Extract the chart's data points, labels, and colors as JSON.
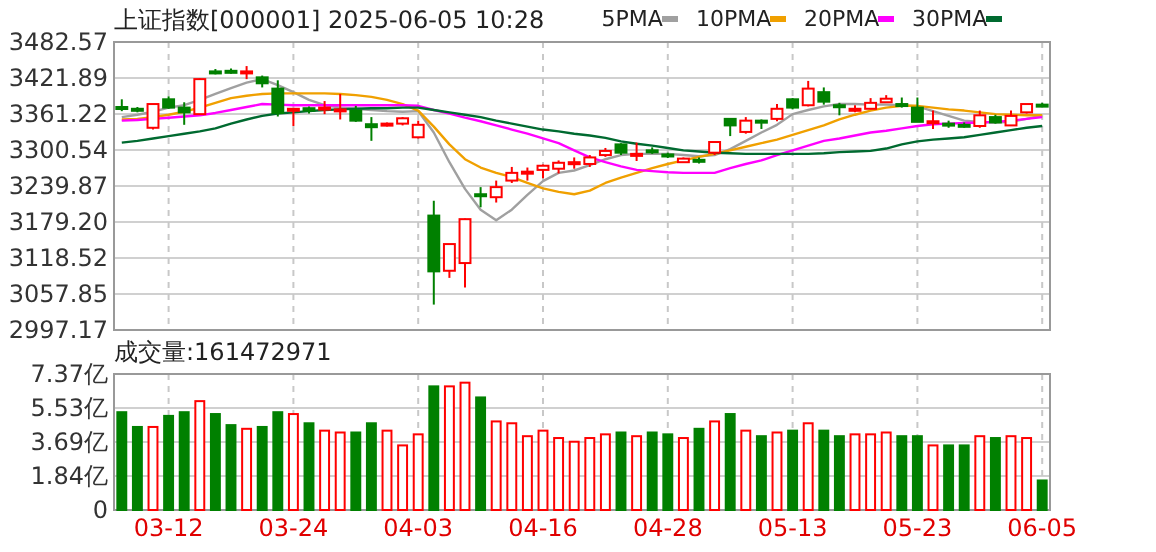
{
  "chart_data": [
    {
      "type": "candlestick",
      "title": "上证指数[000001]  2025-06-05  10:28",
      "legend": "top right",
      "grid": true,
      "tick_labels": "y",
      "categories": [
        null,
        null,
        null,
        null,
        null,
        null,
        null,
        null,
        null,
        null,
        null,
        null,
        null,
        null,
        null,
        null,
        null,
        null,
        null,
        null,
        null,
        null,
        null,
        null,
        null,
        null,
        null,
        null,
        null,
        null,
        null,
        null,
        null,
        null,
        null,
        null,
        null,
        null,
        null,
        null,
        null,
        null,
        null,
        null,
        null,
        null,
        null,
        null,
        null,
        null,
        null,
        null,
        null,
        null,
        null,
        null,
        null,
        null,
        null,
        null
      ],
      "ylim": [
        2997.17,
        3482.57
      ],
      "yticks": [
        2997.17,
        3057.85,
        3118.52,
        {
          "value": 3179.2,
          "label": "3179.20"
        },
        3239.87,
        3300.54,
        3361.22,
        3421.89,
        3482.57
      ],
      "ohlc": [
        [
          3373,
          3386,
          3366,
          3371
        ],
        [
          3370,
          3373,
          3364,
          3368
        ],
        [
          3338,
          3378,
          3335,
          3378
        ],
        [
          3386,
          3391,
          3370,
          3372
        ],
        [
          3372,
          3381,
          3343,
          3364
        ],
        [
          3361,
          3421,
          3360,
          3420
        ],
        [
          3433,
          3437,
          3428,
          3432
        ],
        [
          3434,
          3438,
          3429,
          3433
        ],
        [
          3432,
          3442,
          3420,
          3433
        ],
        [
          3423,
          3426,
          3406,
          3413
        ],
        [
          3404,
          3418,
          3357,
          3363
        ],
        [
          3368,
          3371,
          3341,
          3370
        ],
        [
          3371,
          3374,
          3362,
          3367
        ],
        [
          3369,
          3383,
          3361,
          3372
        ],
        [
          3368,
          3395,
          3352,
          3369
        ],
        [
          3367,
          3375,
          3348,
          3350
        ],
        [
          3344,
          3356,
          3316,
          3339
        ],
        [
          3342,
          3347,
          3340,
          3345
        ],
        [
          3345,
          3356,
          3342,
          3354
        ],
        [
          3322,
          3350,
          3320,
          3343
        ],
        [
          3190,
          3215,
          3040,
          3096
        ],
        [
          3097,
          3142,
          3085,
          3142
        ],
        [
          3110,
          3185,
          3069,
          3184
        ],
        [
          3226,
          3238,
          3204,
          3225
        ],
        [
          3221,
          3249,
          3212,
          3238
        ],
        [
          3249,
          3272,
          3245,
          3262
        ],
        [
          3261,
          3271,
          3249,
          3264
        ],
        [
          3267,
          3276,
          3253,
          3274
        ],
        [
          3269,
          3283,
          3261,
          3279
        ],
        [
          3278,
          3288,
          3269,
          3280
        ],
        [
          3277,
          3292,
          3272,
          3288
        ],
        [
          3292,
          3304,
          3289,
          3299
        ],
        [
          3310,
          3312,
          3292,
          3296
        ],
        [
          3293,
          3313,
          3282,
          3294
        ],
        [
          3300,
          3305,
          3294,
          3299
        ],
        [
          3293,
          3296,
          3287,
          3291
        ],
        [
          3280,
          3288,
          3279,
          3286
        ],
        [
          3284,
          3288,
          3278,
          3283
        ],
        [
          3296,
          3314,
          3292,
          3314
        ],
        [
          3353,
          3354,
          3324,
          3342
        ],
        [
          3331,
          3356,
          3328,
          3350
        ],
        [
          3350,
          3352,
          3336,
          3348
        ],
        [
          3353,
          3378,
          3349,
          3370
        ],
        [
          3386,
          3388,
          3369,
          3372
        ],
        [
          3376,
          3417,
          3374,
          3404
        ],
        [
          3398,
          3406,
          3377,
          3382
        ],
        [
          3376,
          3380,
          3359,
          3374
        ],
        [
          3368,
          3376,
          3364,
          3370
        ],
        [
          3370,
          3388,
          3369,
          3380
        ],
        [
          3381,
          3393,
          3380,
          3387
        ],
        [
          3378,
          3389,
          3372,
          3375
        ],
        [
          3372,
          3389,
          3348,
          3348
        ],
        [
          3347,
          3367,
          3336,
          3349
        ],
        [
          3345,
          3350,
          3338,
          3344
        ],
        [
          3343,
          3347,
          3338,
          3342
        ],
        [
          3341,
          3367,
          3338,
          3359
        ],
        [
          3356,
          3360,
          3345,
          3347
        ],
        [
          3342,
          3367,
          3342,
          3358
        ],
        [
          3364,
          3378,
          3362,
          3378
        ],
        [
          3377,
          3380,
          3374,
          3376
        ]
      ],
      "colors": [
        "#008000",
        "#008000",
        "#ff0000",
        "#008000",
        "#008000",
        "#ff0000",
        "#008000",
        "#008000",
        "#ff0000",
        "#008000",
        "#008000",
        "#ff0000",
        "#008000",
        "#ff0000",
        "#ff0000",
        "#008000",
        "#008000",
        "#ff0000",
        "#ff0000",
        "#ff0000",
        "#008000",
        "#ff0000",
        "#ff0000",
        "#008000",
        "#ff0000",
        "#ff0000",
        "#ff0000",
        "#ff0000",
        "#ff0000",
        "#ff0000",
        "#ff0000",
        "#ff0000",
        "#008000",
        "#ff0000",
        "#008000",
        "#008000",
        "#ff0000",
        "#008000",
        "#ff0000",
        "#008000",
        "#ff0000",
        "#008000",
        "#ff0000",
        "#008000",
        "#ff0000",
        "#008000",
        "#008000",
        "#ff0000",
        "#ff0000",
        "#ff0000",
        "#008000",
        "#008000",
        "#ff0000",
        "#008000",
        "#008000",
        "#ff0000",
        "#008000",
        "#ff0000",
        "#ff0000",
        "#008000"
      ],
      "series": [
        {
          "type": "line",
          "name": "5PMA",
          "color": "#a0a0a0",
          "values": [
            3356,
            3360,
            3365,
            3372,
            3376,
            3385,
            3395,
            3405,
            3414,
            3420,
            3410,
            3398,
            3385,
            3376,
            3372,
            3370,
            3368,
            3366,
            3365,
            3366,
            3330,
            3280,
            3235,
            3200,
            3182,
            3200,
            3225,
            3248,
            3262,
            3266,
            3275,
            3285,
            3292,
            3294,
            3294,
            3294,
            3292,
            3290,
            3292,
            3302,
            3316,
            3330,
            3343,
            3361,
            3368,
            3374,
            3378,
            3378,
            3377,
            3377,
            3376,
            3374,
            3366,
            3358,
            3350,
            3348,
            3347,
            3348,
            3353,
            3359
          ]
        },
        {
          "type": "line",
          "name": "10PMA",
          "color": "#f0a000",
          "values": [
            3352,
            3353,
            3356,
            3360,
            3365,
            3372,
            3380,
            3388,
            3392,
            3395,
            3396,
            3396,
            3396,
            3396,
            3395,
            3393,
            3390,
            3385,
            3378,
            3367,
            3340,
            3310,
            3285,
            3271,
            3262,
            3255,
            3245,
            3236,
            3230,
            3226,
            3232,
            3245,
            3254,
            3262,
            3270,
            3277,
            3283,
            3289,
            3294,
            3300,
            3306,
            3312,
            3318,
            3326,
            3334,
            3342,
            3352,
            3360,
            3367,
            3372,
            3375,
            3375,
            3372,
            3369,
            3367,
            3364,
            3361,
            3360,
            3359,
            3359
          ]
        },
        {
          "type": "line",
          "name": "20PMA",
          "color": "#ff00ff",
          "values": [
            3350,
            3351,
            3353,
            3355,
            3357,
            3359,
            3363,
            3368,
            3373,
            3378,
            3377,
            3376,
            3376,
            3376,
            3376,
            3376,
            3376,
            3376,
            3376,
            3375,
            3368,
            3362,
            3355,
            3349,
            3342,
            3335,
            3328,
            3320,
            3312,
            3300,
            3288,
            3280,
            3273,
            3267,
            3265,
            3263,
            3262,
            3262,
            3262,
            3270,
            3277,
            3283,
            3292,
            3300,
            3308,
            3316,
            3320,
            3325,
            3330,
            3333,
            3337,
            3341,
            3344,
            3345,
            3346,
            3347,
            3348,
            3350,
            3353,
            3356
          ]
        },
        {
          "type": "line",
          "name": "30PMA",
          "color": "#006a30",
          "values": [
            3313,
            3316,
            3320,
            3324,
            3328,
            3332,
            3337,
            3345,
            3352,
            3358,
            3362,
            3364,
            3366,
            3368,
            3369,
            3370,
            3371,
            3371,
            3372,
            3372,
            3368,
            3364,
            3360,
            3356,
            3350,
            3345,
            3340,
            3335,
            3332,
            3328,
            3325,
            3321,
            3315,
            3311,
            3308,
            3304,
            3300,
            3298,
            3296,
            3295,
            3294,
            3294,
            3294,
            3294,
            3294,
            3295,
            3297,
            3298,
            3299,
            3303,
            3310,
            3315,
            3318,
            3320,
            3322,
            3326,
            3330,
            3334,
            3338,
            3341
          ]
        }
      ]
    },
    {
      "type": "bar",
      "title": "成交量:161472971",
      "grid": true,
      "categories": [
        null,
        null,
        null,
        "03-12",
        null,
        null,
        null,
        null,
        null,
        null,
        null,
        "03-24",
        null,
        null,
        null,
        null,
        null,
        null,
        null,
        "04-03",
        null,
        null,
        null,
        null,
        null,
        null,
        null,
        "04-16",
        null,
        null,
        null,
        null,
        null,
        null,
        null,
        "04-28",
        null,
        null,
        null,
        null,
        null,
        null,
        null,
        "05-13",
        null,
        null,
        null,
        null,
        null,
        null,
        null,
        "05-23",
        null,
        null,
        null,
        null,
        null,
        null,
        null,
        "06-05"
      ],
      "ylim": [
        0,
        7.37
      ],
      "yticks": [
        0,
        {
          "value": 1.84,
          "label": "1.84亿"
        },
        {
          "value": 3.69,
          "label": "3.69亿"
        },
        {
          "value": 5.53,
          "label": "5.53亿"
        },
        {
          "value": 7.37,
          "label": "7.37亿"
        }
      ],
      "values": [
        5.3,
        4.5,
        4.5,
        5.1,
        5.3,
        5.9,
        5.2,
        4.6,
        4.4,
        4.5,
        5.3,
        5.2,
        4.7,
        4.3,
        4.2,
        4.2,
        4.7,
        4.3,
        3.5,
        4.1,
        6.7,
        6.7,
        6.9,
        6.1,
        4.8,
        4.7,
        4.0,
        4.3,
        3.9,
        3.7,
        3.9,
        4.1,
        4.2,
        4.0,
        4.2,
        4.1,
        3.9,
        4.4,
        4.8,
        5.2,
        4.3,
        4.0,
        4.2,
        4.3,
        4.7,
        4.3,
        4.0,
        4.1,
        4.1,
        4.2,
        4.0,
        4.0,
        3.5,
        3.5,
        3.5,
        4.0,
        3.9,
        4.0,
        3.9,
        1.6
      ],
      "colors": [
        "#008000",
        "#008000",
        "#ff0000",
        "#008000",
        "#008000",
        "#ff0000",
        "#008000",
        "#008000",
        "#ff0000",
        "#008000",
        "#008000",
        "#ff0000",
        "#008000",
        "#ff0000",
        "#ff0000",
        "#008000",
        "#008000",
        "#ff0000",
        "#ff0000",
        "#ff0000",
        "#008000",
        "#ff0000",
        "#ff0000",
        "#008000",
        "#ff0000",
        "#ff0000",
        "#ff0000",
        "#ff0000",
        "#ff0000",
        "#ff0000",
        "#ff0000",
        "#ff0000",
        "#008000",
        "#ff0000",
        "#008000",
        "#008000",
        "#ff0000",
        "#008000",
        "#ff0000",
        "#008000",
        "#ff0000",
        "#008000",
        "#ff0000",
        "#008000",
        "#ff0000",
        "#008000",
        "#008000",
        "#ff0000",
        "#ff0000",
        "#ff0000",
        "#008000",
        "#008000",
        "#ff0000",
        "#008000",
        "#008000",
        "#ff0000",
        "#008000",
        "#ff0000",
        "#ff0000",
        "#008000"
      ]
    }
  ]
}
